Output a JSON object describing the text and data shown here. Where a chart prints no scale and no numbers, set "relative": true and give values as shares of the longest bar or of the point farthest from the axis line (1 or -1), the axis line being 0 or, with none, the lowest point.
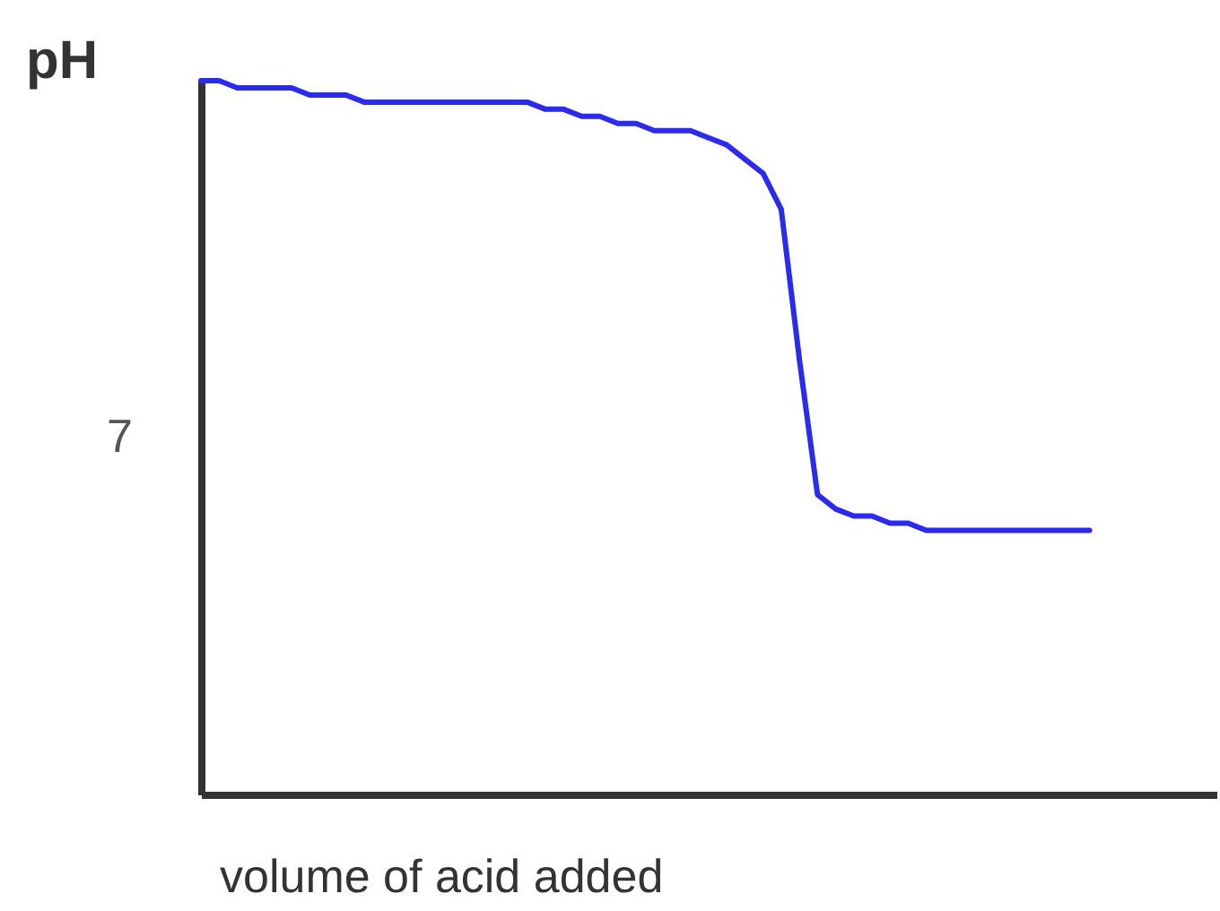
{
  "chart_data": {
    "type": "line",
    "relative": true,
    "ylabel": "pH",
    "xlabel": "volume of acid added",
    "annotations": [
      "7"
    ],
    "categories": [
      null,
      null,
      null,
      null,
      null,
      null,
      null,
      null,
      null,
      null,
      null,
      null,
      null,
      null,
      null,
      null,
      null,
      null,
      null,
      null,
      null,
      null,
      null,
      null,
      null,
      null,
      null,
      null,
      null,
      null,
      null,
      null,
      null,
      null,
      null,
      null,
      null,
      null,
      null,
      null,
      null,
      null,
      null,
      null,
      null,
      null,
      null,
      null,
      null,
      null,
      null,
      null,
      null,
      null,
      null,
      null,
      null
    ],
    "series": [
      {
        "color": "#2a2af0",
        "values": [
          1.0,
          1.0,
          0.99,
          0.99,
          0.99,
          0.99,
          0.98,
          0.98,
          0.98,
          0.97,
          0.97,
          0.97,
          0.97,
          0.97,
          0.97,
          0.97,
          0.97,
          0.97,
          0.97,
          0.96,
          0.96,
          0.95,
          0.95,
          0.94,
          0.94,
          0.93,
          0.93,
          0.93,
          0.92,
          0.91,
          0.89,
          0.87,
          0.82,
          0.61,
          0.42,
          0.4,
          0.39,
          0.39,
          0.38,
          0.38,
          0.37,
          0.37,
          0.37,
          0.37,
          0.37,
          0.37,
          0.37,
          0.37,
          0.37,
          0.37,
          null,
          null,
          null,
          null,
          null,
          null,
          null
        ]
      }
    ],
    "grid": false,
    "marker": "none",
    "line_style": "solid"
  }
}
